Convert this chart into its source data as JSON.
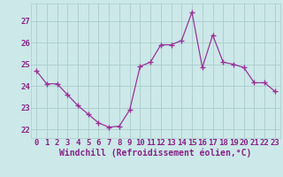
{
  "x": [
    0,
    1,
    2,
    3,
    4,
    5,
    6,
    7,
    8,
    9,
    10,
    11,
    12,
    13,
    14,
    15,
    16,
    17,
    18,
    19,
    20,
    21,
    22,
    23
  ],
  "y": [
    24.7,
    24.1,
    24.1,
    23.6,
    23.1,
    22.7,
    22.3,
    22.1,
    22.15,
    22.9,
    24.9,
    25.1,
    25.9,
    25.9,
    26.1,
    27.4,
    24.85,
    26.35,
    25.1,
    25.0,
    24.85,
    24.15,
    24.15,
    23.75
  ],
  "line_color": "#993399",
  "marker": "+",
  "marker_size": 4,
  "bg_color": "#cce8e8",
  "grid_color": "#aacccc",
  "xlabel": "Windchill (Refroidissement éolien,°C)",
  "ylabel_ticks": [
    22,
    23,
    24,
    25,
    26,
    27
  ],
  "xlim": [
    -0.5,
    23.5
  ],
  "ylim": [
    21.6,
    27.8
  ],
  "font_color": "#882288",
  "tick_fontsize": 6.5,
  "xlabel_fontsize": 7.0,
  "linewidth": 0.9,
  "markeredgewidth": 1.0
}
